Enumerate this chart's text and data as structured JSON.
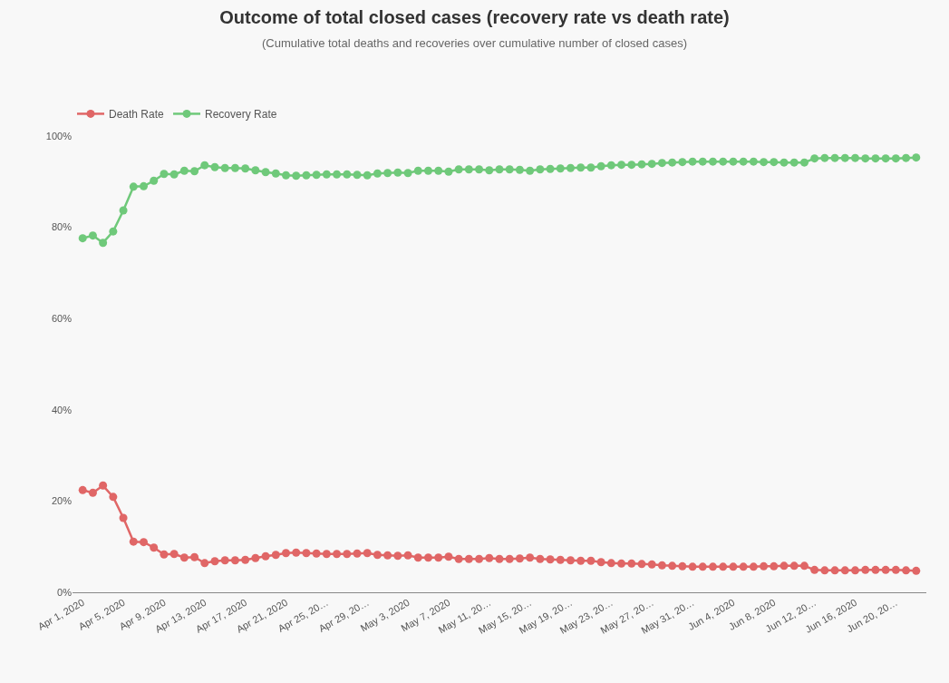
{
  "chart_data": {
    "type": "line",
    "title": "Outcome of total closed cases (recovery rate vs death rate)",
    "subtitle": "(Cumulative total deaths and recoveries over cumulative number of closed cases)",
    "categories": [
      "Apr 1, 2020",
      null,
      null,
      null,
      "Apr 5, 2020",
      null,
      null,
      null,
      "Apr 9, 2020",
      null,
      null,
      null,
      "Apr 13, 2020",
      null,
      null,
      null,
      "Apr 17, 2020",
      null,
      null,
      null,
      "Apr 21, 2020",
      null,
      null,
      null,
      "Apr 25, 20…",
      null,
      null,
      null,
      "Apr 29, 20…",
      null,
      null,
      null,
      "May 3, 2020",
      null,
      null,
      null,
      "May 7, 2020",
      null,
      null,
      null,
      "May 11, 20…",
      null,
      null,
      null,
      "May 15, 20…",
      null,
      null,
      null,
      "May 19, 20…",
      null,
      null,
      null,
      "May 23, 20…",
      null,
      null,
      null,
      "May 27, 20…",
      null,
      null,
      null,
      "May 31, 20…",
      null,
      null,
      null,
      "Jun 4, 2020",
      null,
      null,
      null,
      "Jun 8, 2020",
      null,
      null,
      null,
      "Jun 12, 20…",
      null,
      null,
      null,
      "Jun 16, 2020",
      null,
      null,
      null,
      "Jun 20, 20…",
      null,
      null
    ],
    "series": [
      {
        "name": "Death Rate",
        "color": "#e06666",
        "values": [
          22.4,
          21.8,
          23.4,
          20.9,
          16.3,
          11.1,
          11.0,
          9.8,
          8.3,
          8.4,
          7.6,
          7.7,
          6.4,
          6.8,
          7.0,
          7.0,
          7.1,
          7.5,
          7.9,
          8.2,
          8.6,
          8.7,
          8.6,
          8.5,
          8.4,
          8.4,
          8.4,
          8.5,
          8.6,
          8.2,
          8.1,
          8.0,
          8.1,
          7.6,
          7.6,
          7.6,
          7.8,
          7.3,
          7.3,
          7.3,
          7.5,
          7.3,
          7.3,
          7.4,
          7.6,
          7.3,
          7.2,
          7.1,
          7.0,
          6.9,
          6.9,
          6.6,
          6.4,
          6.3,
          6.3,
          6.2,
          6.1,
          5.9,
          5.8,
          5.7,
          5.6,
          5.6,
          5.6,
          5.6,
          5.6,
          5.6,
          5.6,
          5.7,
          5.7,
          5.8,
          5.8,
          5.8,
          4.9,
          4.8,
          4.8,
          4.8,
          4.8,
          4.9,
          4.9,
          4.9,
          4.9,
          4.8,
          4.7
        ]
      },
      {
        "name": "Recovery Rate",
        "color": "#6fc97a",
        "values": [
          77.6,
          78.2,
          76.6,
          79.1,
          83.7,
          88.9,
          89.0,
          90.2,
          91.7,
          91.6,
          92.4,
          92.3,
          93.6,
          93.2,
          93.0,
          93.0,
          92.9,
          92.5,
          92.1,
          91.8,
          91.4,
          91.3,
          91.4,
          91.5,
          91.6,
          91.6,
          91.6,
          91.5,
          91.4,
          91.8,
          91.9,
          92.0,
          91.9,
          92.4,
          92.4,
          92.4,
          92.2,
          92.7,
          92.7,
          92.7,
          92.5,
          92.7,
          92.7,
          92.6,
          92.4,
          92.7,
          92.8,
          92.9,
          93.0,
          93.1,
          93.1,
          93.4,
          93.6,
          93.7,
          93.7,
          93.8,
          93.9,
          94.1,
          94.2,
          94.3,
          94.4,
          94.4,
          94.4,
          94.4,
          94.4,
          94.4,
          94.4,
          94.3,
          94.3,
          94.2,
          94.2,
          94.2,
          95.1,
          95.2,
          95.2,
          95.2,
          95.2,
          95.1,
          95.1,
          95.1,
          95.1,
          95.2,
          95.3
        ]
      }
    ],
    "ylim": [
      0,
      100
    ],
    "yticks": [
      {
        "value": 0,
        "label": "0%"
      },
      {
        "value": 20,
        "label": "20%"
      },
      {
        "value": 40,
        "label": "40%"
      },
      {
        "value": 60,
        "label": "60%"
      },
      {
        "value": 80,
        "label": "80%"
      },
      {
        "value": 100,
        "label": "100%"
      }
    ],
    "grid": false,
    "legend": "top left",
    "marker": "circle",
    "line_style": "solid"
  }
}
